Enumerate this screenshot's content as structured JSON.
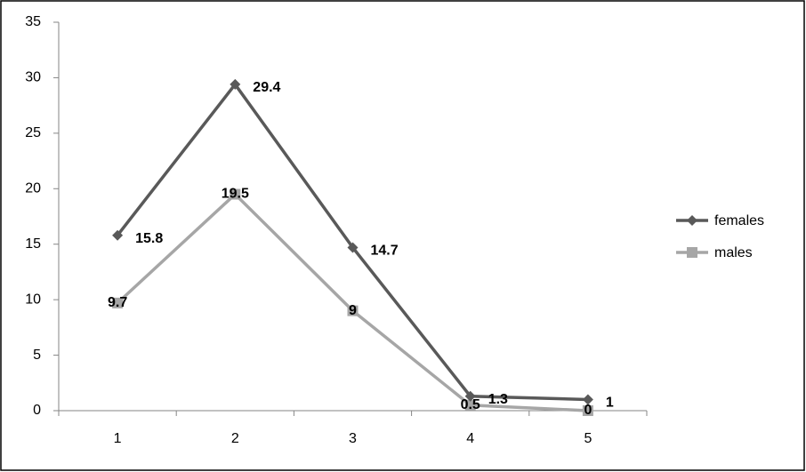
{
  "chart_data": {
    "type": "line",
    "categories": [
      "1",
      "2",
      "3",
      "4",
      "5"
    ],
    "series": [
      {
        "name": "females",
        "color": "#595959",
        "marker": "diamond",
        "values": [
          15.8,
          29.4,
          14.7,
          1.3,
          1
        ]
      },
      {
        "name": "males",
        "color": "#a6a6a6",
        "marker": "square",
        "values": [
          9.7,
          19.5,
          9,
          0.5,
          0
        ]
      }
    ],
    "ylim": [
      0,
      35
    ],
    "yticks": [
      0,
      5,
      10,
      15,
      20,
      25,
      30,
      35
    ],
    "legend": "right"
  }
}
